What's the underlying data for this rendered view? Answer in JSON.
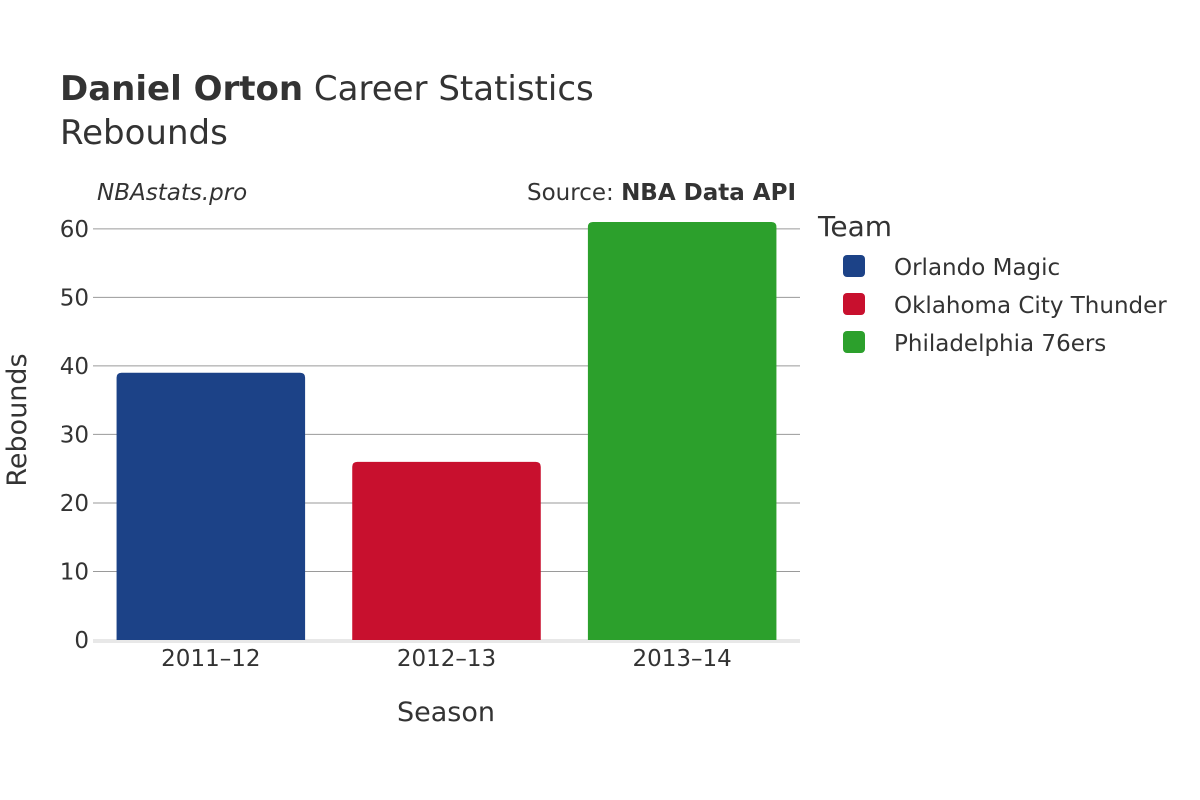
{
  "title": {
    "player": "Daniel Orton",
    "rest": " Career Statistics",
    "subtitle": "Rebounds"
  },
  "watermark": "NBAstats.pro",
  "source": {
    "prefix": "Source: ",
    "name": "NBA Data API"
  },
  "legend": {
    "title": "Team",
    "position": "right"
  },
  "colors": {
    "text": "#333333",
    "grid": "#9a9a9a",
    "baseline": "#e8e8e8"
  },
  "chart_data": {
    "type": "bar",
    "categories": [
      "2011–12",
      "2012–13",
      "2013–14"
    ],
    "series": [
      {
        "name": "Orlando Magic",
        "color": "#1c4287",
        "values": [
          39,
          null,
          null
        ]
      },
      {
        "name": "Oklahoma City Thunder",
        "color": "#c8102e",
        "values": [
          null,
          26,
          null
        ]
      },
      {
        "name": "Philadelphia 76ers",
        "color": "#2ca02c",
        "values": [
          null,
          null,
          61
        ]
      }
    ],
    "xlabel": "Season",
    "ylabel": "Rebounds",
    "ylim": [
      0,
      61
    ],
    "yticks": [
      0,
      10,
      20,
      30,
      40,
      50,
      60
    ],
    "grid": true
  }
}
